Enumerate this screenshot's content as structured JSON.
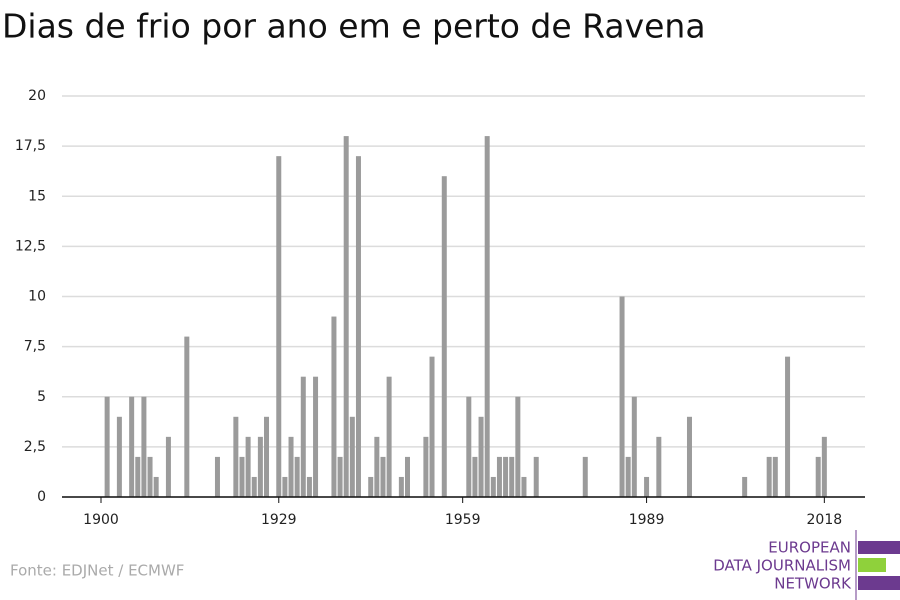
{
  "chart_data": {
    "type": "bar",
    "title": "Dias de frio por ano em e perto de Ravena",
    "categories": [
      "1900",
      null,
      null,
      null,
      null,
      null,
      null,
      null,
      null,
      null,
      null,
      null,
      null,
      null,
      null,
      null,
      null,
      null,
      null,
      null,
      null,
      null,
      null,
      null,
      null,
      null,
      null,
      null,
      null,
      "1929",
      null,
      null,
      null,
      null,
      null,
      null,
      null,
      null,
      null,
      null,
      null,
      null,
      null,
      null,
      null,
      null,
      null,
      null,
      null,
      null,
      null,
      null,
      null,
      null,
      null,
      null,
      null,
      null,
      null,
      "1959",
      null,
      null,
      null,
      null,
      null,
      null,
      null,
      null,
      null,
      null,
      null,
      null,
      null,
      null,
      null,
      null,
      null,
      null,
      null,
      null,
      null,
      null,
      null,
      null,
      null,
      null,
      null,
      null,
      null,
      "1989",
      null,
      null,
      null,
      null,
      null,
      null,
      null,
      null,
      null,
      null,
      null,
      null,
      null,
      null,
      null,
      null,
      null,
      null,
      null,
      null,
      null,
      null,
      null,
      null,
      null,
      null,
      null,
      null,
      "2018"
    ],
    "values": [
      0,
      5,
      0,
      4,
      0,
      5,
      2,
      5,
      2,
      1,
      0,
      3,
      0,
      0,
      8,
      0,
      0,
      0,
      0,
      2,
      0,
      0,
      4,
      2,
      3,
      1,
      3,
      4,
      0,
      17,
      1,
      3,
      2,
      6,
      1,
      6,
      0,
      0,
      9,
      2,
      18,
      4,
      17,
      0,
      1,
      3,
      2,
      6,
      0,
      1,
      2,
      0,
      0,
      3,
      7,
      0,
      16,
      0,
      0,
      0,
      5,
      2,
      4,
      18,
      1,
      2,
      2,
      2,
      5,
      1,
      0,
      2,
      0,
      0,
      0,
      0,
      0,
      0,
      0,
      2,
      0,
      0,
      0,
      0,
      0,
      10,
      2,
      5,
      0,
      1,
      0,
      3,
      0,
      0,
      0,
      0,
      4,
      0,
      0,
      0,
      0,
      0,
      0,
      0,
      0,
      1,
      0,
      0,
      0,
      2,
      2,
      0,
      7,
      0,
      0,
      0,
      0,
      2,
      3
    ],
    "color": "#9b9b9b",
    "ylim": [
      0,
      20
    ],
    "yticks": [
      0,
      {
        "value": 2.5,
        "label": "2,5"
      },
      5,
      {
        "value": 7.5,
        "label": "7,5"
      },
      10,
      {
        "value": 12.5,
        "label": "12,5"
      },
      15,
      {
        "value": 17.5,
        "label": "17,5"
      },
      20
    ],
    "grid": true
  },
  "source": "Fonte: EDJNet / ECMWF",
  "logo": [
    "EUROPEAN",
    "DATA JOURNALISM",
    "NETWORK"
  ]
}
